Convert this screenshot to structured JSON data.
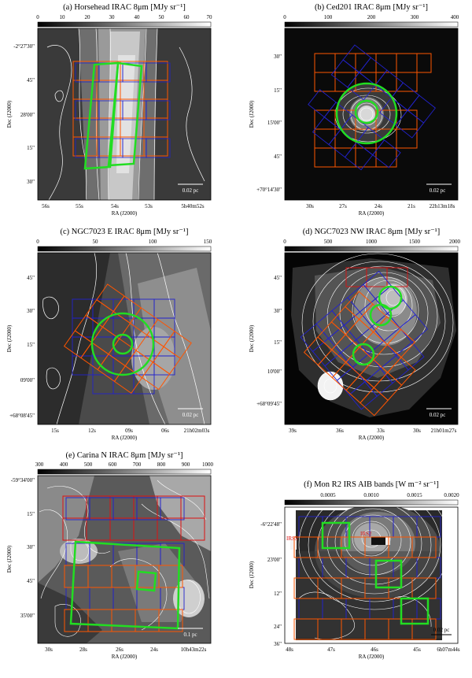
{
  "figure": {
    "panels": [
      {
        "id": "a",
        "title": "(a) Horsehead   IRAC 8μm [MJy sr⁻¹]",
        "colorbar_ticks": [
          "0",
          "10",
          "20",
          "30",
          "40",
          "50",
          "60",
          "70"
        ],
        "y_ticks": [
          "-2°27'30\"",
          "45\"",
          "28'00\"",
          "15\"",
          "30\""
        ],
        "x_ticks": [
          "56s",
          "55s",
          "54s",
          "53s",
          "5h40m52s"
        ],
        "xlabel": "RA (J2000)",
        "ylabel": "Dec (J2000)",
        "scalebar": "0.02 pc"
      },
      {
        "id": "b",
        "title": "(b) Ced201   IRAC 8μm [MJy sr⁻¹]",
        "colorbar_ticks": [
          "0",
          "100",
          "200",
          "300",
          "400"
        ],
        "y_ticks": [
          "30\"",
          "15\"",
          "15'00\"",
          "45\"",
          "+70°14'30\""
        ],
        "x_ticks": [
          "30s",
          "27s",
          "24s",
          "21s",
          "22h13m18s"
        ],
        "xlabel": "RA (J2000)",
        "ylabel": "Dec (J2000)",
        "scalebar": "0.02 pc"
      },
      {
        "id": "c",
        "title": "(c) NGC7023 E  IRAC 8μm [MJy sr⁻¹]",
        "colorbar_ticks": [
          "0",
          "50",
          "100",
          "150"
        ],
        "y_ticks": [
          "45\"",
          "30\"",
          "15\"",
          "09'00\"",
          "+68°08'45\""
        ],
        "x_ticks": [
          "15s",
          "12s",
          "09s",
          "06s",
          "21h02m03s"
        ],
        "xlabel": "RA (J2000)",
        "ylabel": "Dec (J2000)",
        "scalebar": "0.02 pc"
      },
      {
        "id": "d",
        "title": "(d) NGC7023 NW  IRAC 8μm [MJy sr⁻¹]",
        "colorbar_ticks": [
          "0",
          "500",
          "1000",
          "1500",
          "2000"
        ],
        "y_ticks": [
          "45\"",
          "30\"",
          "15\"",
          "10'00\"",
          "+68°09'45\""
        ],
        "x_ticks": [
          "39s",
          "36s",
          "33s",
          "30s",
          "21h01m27s"
        ],
        "xlabel": "RA (J2000)",
        "ylabel": "Dec (J2000)",
        "scalebar": "0.02 pc"
      },
      {
        "id": "e",
        "title": "(e) Carina N   IRAC 8μm [MJy sr⁻¹]",
        "colorbar_ticks": [
          "300",
          "400",
          "500",
          "600",
          "700",
          "800",
          "900",
          "1000"
        ],
        "y_ticks": [
          "-59°34'00\"",
          "15\"",
          "30\"",
          "45\"",
          "35'00\""
        ],
        "x_ticks": [
          "30s",
          "28s",
          "26s",
          "24s",
          "10h43m22s"
        ],
        "xlabel": "RA (J2000)",
        "ylabel": "Dec (J2000)",
        "scalebar": "0.1 pc"
      },
      {
        "id": "f",
        "title": "(f) Mon R2   IRS AIB bands [W m⁻² sr⁻¹]",
        "colorbar_ticks": [
          "0.0005",
          "0.0010",
          "0.0015",
          "0.0020"
        ],
        "y_ticks": [
          "-6°22'48\"",
          "23'00\"",
          "12\"",
          "24\"",
          "36\""
        ],
        "x_ticks": [
          "48s",
          "47s",
          "46s",
          "45s",
          "6h07m44s"
        ],
        "xlabel": "RA (J2000)",
        "ylabel": "Dec (J2000)",
        "scalebar": "0.02 pc",
        "annotations": [
          "IRS3",
          "IRS2"
        ]
      }
    ]
  },
  "colors": {
    "footprint_orange": "#ff5500",
    "footprint_blue": "#2222cc",
    "footprint_red": "#dd1111",
    "aperture_green": "#22dd22",
    "contour": "#ffffff",
    "annotation": "#dd1111"
  }
}
